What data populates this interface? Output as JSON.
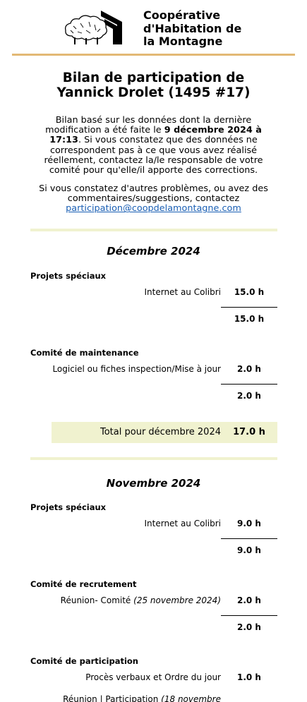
{
  "header": {
    "org_line1": "Coopérative",
    "org_line2": "d'Habitation de",
    "org_line3": "la Montagne"
  },
  "title": {
    "line1": "Bilan de participation de",
    "line2": "Yannick Drolet (1495 #17)"
  },
  "intro": {
    "part1": "Bilan basé sur les données dont la dernière modification a été faite le ",
    "date_bold": "9 décembre 2024 à 17:13",
    "part2": ". Si vous constatez que des données ne correspondent pas à ce que vous avez réalisé réellement, contactez la/le responsable de votre comité pour qu'elle/il apporte des corrections.",
    "problems_text": "Si vous constatez d'autres problèmes, ou avez des commentaires/suggestions, contactez",
    "email": "participation@coopdelamontagne.com"
  },
  "months": [
    {
      "title": "Décembre 2024",
      "categories": [
        {
          "name": "Projets spéciaux",
          "items": [
            {
              "label": "Internet au Colibri",
              "hours": "15.0 h"
            }
          ],
          "subtotal": "15.0 h"
        },
        {
          "name": "Comité de maintenance",
          "items": [
            {
              "label": "Logiciel ou fiches inspection/Mise à jour",
              "hours": "2.0 h"
            }
          ],
          "subtotal": "2.0 h"
        }
      ],
      "total_label": "Total pour décembre 2024",
      "total_hours": "17.0 h"
    },
    {
      "title": "Novembre 2024",
      "categories": [
        {
          "name": "Projets spéciaux",
          "items": [
            {
              "label": "Internet au Colibri",
              "hours": "9.0 h"
            }
          ],
          "subtotal": "9.0 h"
        },
        {
          "name": "Comité de recrutement",
          "items": [
            {
              "label": "Réunion- Comité",
              "date": "(25 novembre 2024)",
              "hours": "2.0 h"
            }
          ],
          "subtotal": "2.0 h"
        },
        {
          "name": "Comité de participation",
          "items": [
            {
              "label": "Procès verbaux et Ordre du jour",
              "hours": "1.0 h"
            },
            {
              "label": "Réunion | Participation",
              "date": "(18 novembre",
              "hours": ""
            }
          ],
          "subtotal": ""
        }
      ]
    }
  ]
}
